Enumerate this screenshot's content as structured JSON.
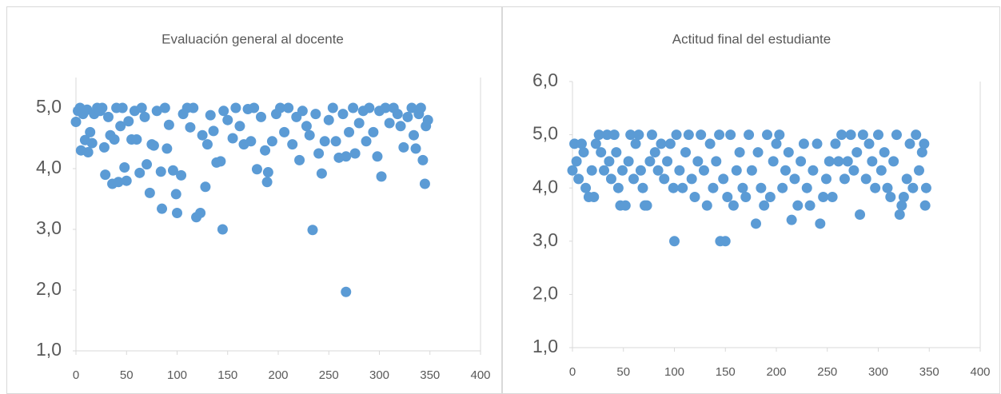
{
  "chart_data": [
    {
      "type": "scatter",
      "title": "Evaluación general al docente",
      "color": "#5b9bd5",
      "x": [
        0,
        2,
        4,
        5,
        7,
        9,
        11,
        12,
        14,
        16,
        18,
        21,
        24,
        26,
        28,
        29,
        32,
        34,
        36,
        38,
        40,
        42,
        44,
        46,
        48,
        50,
        52,
        55,
        58,
        60,
        63,
        65,
        68,
        70,
        73,
        75,
        77,
        80,
        84,
        85,
        88,
        90,
        92,
        96,
        99,
        100,
        104,
        106,
        110,
        113,
        116,
        119,
        123,
        125,
        128,
        130,
        133,
        136,
        139,
        143,
        145,
        146,
        150,
        155,
        158,
        162,
        166,
        170,
        173,
        176,
        179,
        183,
        187,
        189,
        190,
        194,
        198,
        202,
        206,
        210,
        214,
        218,
        221,
        224,
        228,
        231,
        234,
        237,
        240,
        243,
        246,
        250,
        254,
        257,
        260,
        264,
        267,
        267,
        270,
        274,
        276,
        280,
        284,
        287,
        290,
        294,
        298,
        300,
        302,
        306,
        310,
        314,
        318,
        321,
        324,
        328,
        332,
        334,
        336,
        339,
        341,
        343,
        345,
        346,
        348
      ],
      "y": [
        4.77,
        4.95,
        5.0,
        4.3,
        4.9,
        4.47,
        4.97,
        4.27,
        4.6,
        4.42,
        4.9,
        5.0,
        4.95,
        5.0,
        4.35,
        3.9,
        4.85,
        4.55,
        3.75,
        4.48,
        5.0,
        3.78,
        4.7,
        5.0,
        4.02,
        3.8,
        4.78,
        4.48,
        4.95,
        4.48,
        3.93,
        5.0,
        4.85,
        4.07,
        3.6,
        4.4,
        4.38,
        4.95,
        3.95,
        3.34,
        5.0,
        4.33,
        4.72,
        3.97,
        3.58,
        3.27,
        3.89,
        4.9,
        5.0,
        4.68,
        5.0,
        3.2,
        3.27,
        4.55,
        3.7,
        4.4,
        4.88,
        4.62,
        4.1,
        4.12,
        3.0,
        4.95,
        4.8,
        4.5,
        5.0,
        4.7,
        4.4,
        4.98,
        4.45,
        5.0,
        3.99,
        4.85,
        4.3,
        3.78,
        3.94,
        4.45,
        4.9,
        5.0,
        4.6,
        5.0,
        4.4,
        4.85,
        4.14,
        4.95,
        4.7,
        4.55,
        2.99,
        4.9,
        4.25,
        3.92,
        4.45,
        4.8,
        5.0,
        4.45,
        4.18,
        4.9,
        1.97,
        4.2,
        4.6,
        5.0,
        4.25,
        4.75,
        4.95,
        4.45,
        5.0,
        4.6,
        4.2,
        4.95,
        3.87,
        5.0,
        4.75,
        5.0,
        4.9,
        4.7,
        4.35,
        4.85,
        5.0,
        4.55,
        4.33,
        4.9,
        5.0,
        4.14,
        3.75,
        4.7,
        4.8
      ],
      "xlim": [
        0,
        400
      ],
      "xticks": [
        0,
        50,
        100,
        150,
        200,
        250,
        300,
        350,
        400
      ],
      "ylim": [
        1,
        5.5
      ],
      "yticks": [
        {
          "value": 1,
          "label": "1,0"
        },
        {
          "value": 2,
          "label": "2,0"
        },
        {
          "value": 3,
          "label": "3,0"
        },
        {
          "value": 4,
          "label": "4,0"
        },
        {
          "value": 5,
          "label": "5,0"
        }
      ]
    },
    {
      "type": "scatter",
      "title": "Actitud final del estudiante",
      "color": "#5b9bd5",
      "x": [
        0,
        2,
        4,
        6,
        9,
        11,
        13,
        16,
        19,
        21,
        23,
        26,
        28,
        31,
        34,
        36,
        38,
        41,
        43,
        45,
        47,
        49,
        52,
        55,
        57,
        60,
        62,
        65,
        67,
        69,
        71,
        73,
        76,
        78,
        81,
        84,
        87,
        90,
        93,
        96,
        99,
        100,
        102,
        105,
        108,
        111,
        114,
        117,
        120,
        123,
        126,
        129,
        132,
        135,
        138,
        141,
        144,
        145,
        148,
        150,
        152,
        155,
        158,
        161,
        164,
        167,
        170,
        173,
        176,
        180,
        182,
        185,
        188,
        191,
        194,
        197,
        200,
        203,
        206,
        209,
        212,
        215,
        218,
        221,
        224,
        227,
        230,
        233,
        236,
        240,
        243,
        246,
        249,
        252,
        255,
        258,
        261,
        264,
        267,
        270,
        273,
        276,
        279,
        282,
        285,
        288,
        291,
        294,
        297,
        300,
        303,
        306,
        309,
        312,
        315,
        318,
        321,
        323,
        325,
        328,
        331,
        334,
        337,
        340,
        343,
        345,
        346,
        347
      ],
      "y": [
        4.33,
        4.83,
        4.5,
        4.17,
        4.83,
        4.67,
        4.0,
        3.83,
        4.33,
        3.83,
        4.83,
        5.0,
        4.67,
        4.33,
        5.0,
        4.5,
        4.17,
        5.0,
        4.67,
        4.0,
        3.67,
        4.33,
        3.67,
        4.5,
        5.0,
        4.17,
        4.83,
        5.0,
        4.33,
        4.0,
        3.67,
        3.67,
        4.5,
        5.0,
        4.67,
        4.33,
        4.83,
        4.17,
        4.5,
        4.83,
        4.0,
        3.0,
        5.0,
        4.33,
        4.0,
        4.67,
        5.0,
        4.17,
        3.83,
        4.5,
        5.0,
        4.33,
        3.67,
        4.83,
        4.0,
        4.5,
        5.0,
        3.0,
        4.17,
        3.0,
        3.83,
        5.0,
        3.67,
        4.33,
        4.67,
        4.0,
        3.83,
        5.0,
        4.33,
        3.33,
        4.67,
        4.0,
        3.67,
        5.0,
        3.83,
        4.5,
        4.83,
        5.0,
        4.0,
        4.33,
        4.67,
        3.4,
        4.17,
        3.67,
        4.5,
        4.83,
        4.0,
        3.67,
        4.33,
        4.83,
        3.33,
        3.83,
        4.17,
        4.5,
        3.83,
        4.83,
        4.5,
        5.0,
        4.17,
        4.5,
        5.0,
        4.33,
        4.67,
        3.5,
        5.0,
        4.17,
        4.83,
        4.5,
        4.0,
        5.0,
        4.33,
        4.67,
        4.0,
        3.83,
        4.5,
        5.0,
        3.5,
        3.67,
        3.83,
        4.17,
        4.83,
        4.0,
        5.0,
        4.33,
        4.67,
        4.83,
        3.67,
        4.0
      ],
      "xlim": [
        0,
        400
      ],
      "xticks": [
        0,
        50,
        100,
        150,
        200,
        250,
        300,
        350,
        400
      ],
      "ylim": [
        1,
        6
      ],
      "yticks": [
        {
          "value": 1,
          "label": "1,0"
        },
        {
          "value": 2,
          "label": "2,0"
        },
        {
          "value": 3,
          "label": "3,0"
        },
        {
          "value": 4,
          "label": "4,0"
        },
        {
          "value": 5,
          "label": "5,0"
        },
        {
          "value": 6,
          "label": "6,0"
        }
      ]
    }
  ]
}
